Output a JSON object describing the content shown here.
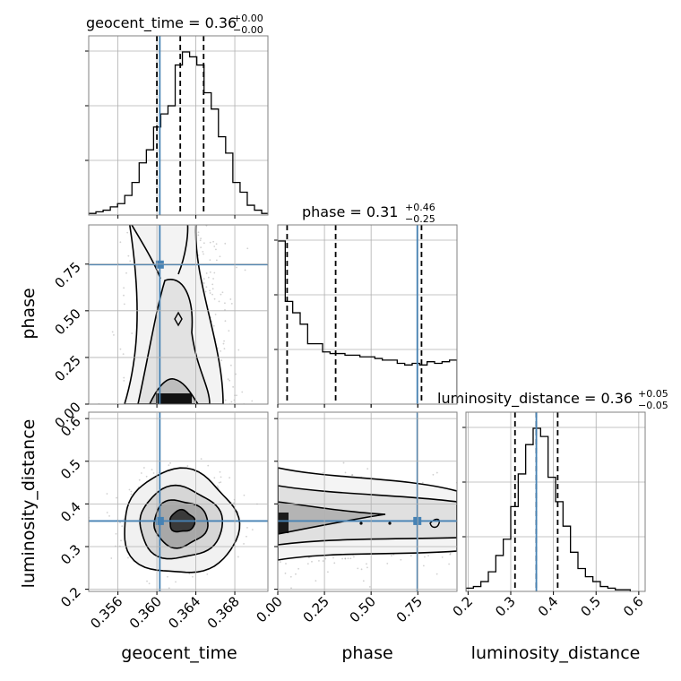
{
  "chart_data": {
    "type": "corner",
    "parameters": [
      "geocent_time",
      "phase",
      "luminosity_distance"
    ],
    "truths": [
      0.3603,
      0.7475,
      0.36
    ],
    "truth_color": "#4682b4",
    "panels": {
      "geocent_time": {
        "title": {
          "prefix": "geocent_time = ",
          "value": "0.36",
          "upper": "+0.00",
          "lower": "−0.00"
        },
        "range": [
          0.353,
          0.3714
        ],
        "ticks": [
          0.356,
          0.36,
          0.364,
          0.368
        ],
        "tick_labels": [
          "0.356",
          "0.360",
          "0.364",
          "0.368"
        ],
        "quantiles": [
          0.36,
          0.3624,
          0.3648
        ],
        "hist_edges_start": 0.353,
        "hist_bin": 0.00074,
        "hist": [
          1,
          2,
          3,
          5,
          7,
          12,
          20,
          32,
          40,
          54,
          62,
          67,
          92,
          100,
          97,
          92,
          75,
          65,
          48,
          38,
          20,
          14,
          6,
          3,
          1
        ]
      },
      "phase": {
        "title": {
          "prefix": "phase = ",
          "value": "0.31",
          "upper": "+0.46",
          "lower": "−0.25"
        },
        "range": [
          0.0,
          0.96
        ],
        "ticks": [
          0.0,
          0.25,
          0.5,
          0.75
        ],
        "tick_labels": [
          "0.00",
          "0.25",
          "0.50",
          "0.75"
        ],
        "quantiles": [
          0.05,
          0.31,
          0.77
        ],
        "hist_edges_start": 0.0,
        "hist_bin": 0.04,
        "hist": [
          100,
          63,
          56,
          49,
          37,
          37,
          32,
          31,
          31,
          30,
          30,
          29,
          29,
          28,
          27,
          27,
          25,
          24,
          25,
          24,
          26,
          25,
          26,
          27
        ]
      },
      "luminosity_distance": {
        "title": {
          "prefix": "luminosity_distance = ",
          "value": "0.36",
          "upper": "+0.05",
          "lower": "−0.05"
        },
        "range": [
          0.195,
          0.615
        ],
        "ticks": [
          0.2,
          0.3,
          0.4,
          0.5,
          0.6
        ],
        "tick_labels": [
          "0.2",
          "0.3",
          "0.4",
          "0.5",
          "0.6"
        ],
        "quantiles": [
          0.31,
          0.36,
          0.41
        ],
        "hist_edges_start": 0.195,
        "hist_bin": 0.0175,
        "hist": [
          2,
          3,
          6,
          12,
          22,
          32,
          52,
          72,
          90,
          100,
          95,
          70,
          55,
          40,
          24,
          14,
          9,
          6,
          3,
          2,
          1,
          1
        ]
      }
    },
    "labels": {
      "x": [
        "geocent_time",
        "phase",
        "luminosity_distance"
      ],
      "y": [
        "phase",
        "luminosity_distance"
      ]
    }
  }
}
